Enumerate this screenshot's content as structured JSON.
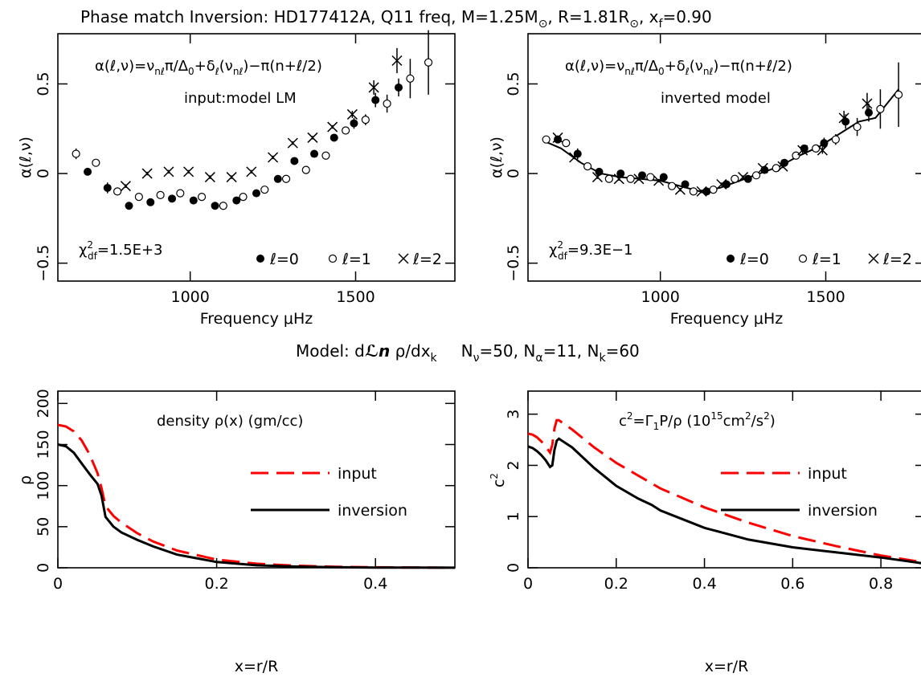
{
  "page": {
    "title": "Phase match Inversion: HD177412A, Q11 freq, M=1.25M",
    "title_sun1": "⊙",
    "title_mid": ", R=1.81R",
    "title_sun2": "⊙",
    "title_end": ", x",
    "title_sub": "f",
    "title_tail": "=0.90",
    "model_line": {
      "pre": "Model: d",
      "ln": "ℒn",
      "rho": " ρ/dx",
      "k": "k",
      "nnu": "N",
      "nnu_sub": "ν",
      "nnu_val": "=50, N",
      "na_sub": "α",
      "na_val": "=11, N",
      "nk_sub": "k",
      "nk_val": "=60"
    }
  },
  "chart_data": [
    {
      "id": "alpha-input",
      "type": "scatter",
      "formula": "α(ℓ,ν)=ν",
      "formula_sub1": "nℓ",
      "formula_mid": "π/Δ",
      "formula_sub0": "0",
      "formula_plus": "+δ",
      "formula_subl": "ℓ",
      "formula_paren": "(ν",
      "formula_sub2": "nℓ",
      "formula_end": ")−π(n+ℓ/2)",
      "subtitle": "input:model LM",
      "chi_pre": "χ",
      "chi_sup": "2",
      "chi_sub": "df",
      "chi_val": "=1.5E+3",
      "xlabel": "Frequency μHz",
      "ylabel": "α(ℓ,ν)",
      "xlim": [
        600,
        1800
      ],
      "ylim": [
        -0.6,
        0.78
      ],
      "xticks": [
        "1000",
        "1500"
      ],
      "yticks": [
        "−0.5",
        "0",
        "0.5"
      ],
      "legend": [
        {
          "marker": "filled",
          "label": "ℓ=0"
        },
        {
          "marker": "open",
          "label": "ℓ=1"
        },
        {
          "marker": "cross",
          "label": "ℓ=2"
        }
      ],
      "series": [
        {
          "name": "ℓ=0",
          "marker": "filled",
          "x": [
            690,
            750,
            815,
            880,
            945,
            1010,
            1075,
            1140,
            1200,
            1265,
            1315,
            1375,
            1435,
            1495,
            1560,
            1630
          ],
          "y": [
            0.01,
            -0.08,
            -0.18,
            -0.16,
            -0.14,
            -0.15,
            -0.18,
            -0.15,
            -0.11,
            -0.03,
            0.07,
            0.11,
            0.2,
            0.28,
            0.41,
            0.48
          ],
          "err": [
            0.02,
            0.03,
            0.02,
            0.02,
            0.02,
            0.02,
            0.02,
            0.02,
            0.02,
            0.02,
            0.02,
            0.02,
            0.02,
            0.03,
            0.04,
            0.05
          ]
        },
        {
          "name": "ℓ=1",
          "marker": "open",
          "x": [
            655,
            715,
            780,
            845,
            910,
            970,
            1035,
            1100,
            1160,
            1225,
            1290,
            1350,
            1410,
            1470,
            1530,
            1595,
            1665,
            1720
          ],
          "y": [
            0.11,
            0.06,
            -0.1,
            -0.13,
            -0.12,
            -0.11,
            -0.13,
            -0.18,
            -0.13,
            -0.09,
            -0.03,
            0.02,
            0.1,
            0.24,
            0.3,
            0.39,
            0.53,
            0.62
          ],
          "err": [
            0.03,
            0.02,
            0.02,
            0.02,
            0.02,
            0.02,
            0.02,
            0.02,
            0.02,
            0.02,
            0.02,
            0.02,
            0.02,
            0.02,
            0.03,
            0.05,
            0.11,
            0.18
          ]
        },
        {
          "name": "ℓ=2",
          "marker": "cross",
          "x": [
            805,
            870,
            935,
            995,
            1060,
            1125,
            1185,
            1250,
            1310,
            1370,
            1430,
            1490,
            1555,
            1625
          ],
          "y": [
            -0.07,
            0.0,
            0.01,
            0.01,
            -0.02,
            -0.02,
            0.01,
            0.09,
            0.17,
            0.2,
            0.26,
            0.33,
            0.48,
            0.63
          ],
          "err": [
            0.01,
            0.01,
            0.01,
            0.01,
            0.01,
            0.01,
            0.01,
            0.01,
            0.01,
            0.01,
            0.01,
            0.02,
            0.04,
            0.07
          ]
        }
      ]
    },
    {
      "id": "alpha-inverted",
      "type": "scatter",
      "formula": "α(ℓ,ν)=ν",
      "formula_sub1": "nℓ",
      "formula_mid": "π/Δ",
      "formula_sub0": "0",
      "formula_plus": "+δ",
      "formula_subl": "ℓ",
      "formula_paren": "(ν",
      "formula_sub2": "nℓ",
      "formula_end": ")−π(n+ℓ/2)",
      "subtitle": "inverted model",
      "chi_pre": "χ",
      "chi_sup": "2",
      "chi_sub": "df",
      "chi_val": "=9.3E−1",
      "xlabel": "Frequency μHz",
      "ylabel": "α(ℓ,ν)",
      "xlim": [
        600,
        1800
      ],
      "ylim": [
        -0.6,
        0.78
      ],
      "xticks": [
        "1000",
        "1500"
      ],
      "yticks": [
        "−0.5",
        "0",
        "0.5"
      ],
      "legend": [
        {
          "marker": "filled",
          "label": "ℓ=0"
        },
        {
          "marker": "open",
          "label": "ℓ=1"
        },
        {
          "marker": "cross",
          "label": "ℓ=2"
        }
      ],
      "series": [
        {
          "name": "ℓ=0",
          "marker": "filled",
          "x": [
            690,
            750,
            815,
            880,
            945,
            1010,
            1075,
            1140,
            1200,
            1265,
            1315,
            1375,
            1435,
            1495,
            1560,
            1630
          ],
          "y": [
            0.19,
            0.11,
            0.01,
            0.0,
            -0.01,
            -0.02,
            -0.06,
            -0.1,
            -0.06,
            -0.03,
            0.02,
            0.06,
            0.14,
            0.17,
            0.29,
            0.34
          ],
          "err": [
            0.02,
            0.03,
            0.02,
            0.02,
            0.02,
            0.02,
            0.02,
            0.02,
            0.02,
            0.02,
            0.02,
            0.02,
            0.02,
            0.03,
            0.04,
            0.05
          ]
        },
        {
          "name": "ℓ=1",
          "marker": "open",
          "x": [
            655,
            715,
            780,
            845,
            910,
            970,
            1035,
            1100,
            1160,
            1225,
            1290,
            1350,
            1410,
            1470,
            1530,
            1595,
            1665,
            1720
          ],
          "y": [
            0.19,
            0.17,
            0.04,
            -0.03,
            -0.03,
            -0.02,
            -0.07,
            -0.1,
            -0.09,
            -0.03,
            -0.01,
            0.03,
            0.1,
            0.14,
            0.19,
            0.26,
            0.36,
            0.44
          ],
          "err": [
            0.02,
            0.02,
            0.02,
            0.02,
            0.02,
            0.02,
            0.02,
            0.02,
            0.02,
            0.02,
            0.02,
            0.02,
            0.02,
            0.02,
            0.03,
            0.05,
            0.11,
            0.18
          ]
        },
        {
          "name": "ℓ=2",
          "marker": "cross",
          "x": [
            690,
            740,
            810,
            875,
            935,
            995,
            1060,
            1125,
            1185,
            1250,
            1310,
            1370,
            1430,
            1490,
            1555,
            1625
          ],
          "y": [
            0.2,
            0.09,
            -0.02,
            -0.03,
            -0.03,
            -0.04,
            -0.09,
            -0.1,
            -0.06,
            -0.02,
            0.03,
            0.04,
            0.13,
            0.13,
            0.31,
            0.39
          ],
          "err": [
            0.01,
            0.01,
            0.01,
            0.01,
            0.01,
            0.01,
            0.01,
            0.01,
            0.01,
            0.01,
            0.01,
            0.01,
            0.02,
            0.02,
            0.04,
            0.06
          ]
        }
      ],
      "model_line": {
        "x": [
          650,
          700,
          760,
          820,
          880,
          940,
          1000,
          1060,
          1120,
          1180,
          1240,
          1300,
          1360,
          1420,
          1480,
          1540,
          1600,
          1650,
          1720
        ],
        "y": [
          0.18,
          0.14,
          0.06,
          0.0,
          -0.02,
          -0.03,
          -0.04,
          -0.07,
          -0.1,
          -0.08,
          -0.04,
          0.0,
          0.04,
          0.1,
          0.15,
          0.22,
          0.29,
          0.31,
          0.47
        ]
      }
    },
    {
      "id": "density",
      "type": "line",
      "title": "density ρ(x) (gm/cc)",
      "xlabel": "x=r/R",
      "ylabel": "ρ",
      "xlim": [
        0,
        0.5
      ],
      "ylim": [
        0,
        215
      ],
      "xticks": [
        "0",
        "0.2",
        "0.4"
      ],
      "yticks": [
        "0",
        "50",
        "100",
        "150",
        "200"
      ],
      "series": [
        {
          "name": "input",
          "style": "dashed",
          "color": "#ff0000",
          "x": [
            0,
            0.01,
            0.02,
            0.03,
            0.04,
            0.05,
            0.055,
            0.06,
            0.07,
            0.08,
            0.1,
            0.12,
            0.15,
            0.2,
            0.25,
            0.3,
            0.35,
            0.4,
            0.5
          ],
          "y": [
            174,
            172,
            166,
            155,
            138,
            115,
            97,
            75,
            63,
            55,
            42,
            32,
            21,
            10,
            5,
            2.5,
            1.2,
            0.6,
            0.1
          ]
        },
        {
          "name": "inversion",
          "style": "solid",
          "color": "#000000",
          "x": [
            0,
            0.01,
            0.02,
            0.03,
            0.04,
            0.05,
            0.055,
            0.06,
            0.07,
            0.08,
            0.1,
            0.12,
            0.15,
            0.2,
            0.25,
            0.3,
            0.35,
            0.4,
            0.5
          ],
          "y": [
            150,
            148,
            140,
            127,
            114,
            102,
            88,
            62,
            50,
            43,
            34,
            26,
            16,
            7,
            3,
            1.5,
            0.7,
            0.3,
            0.05
          ]
        }
      ],
      "legend": [
        "input",
        "inversion"
      ]
    },
    {
      "id": "sound-speed",
      "type": "line",
      "title": "c",
      "title_sup": "2",
      "title_mid": "=Γ",
      "title_sub": "1",
      "title_tail": "P/ρ (10",
      "title_sup2": "15",
      "title_unit": "cm",
      "title_sup3": "2",
      "title_end": "/s",
      "title_sup4": "2",
      "title_close": ")",
      "xlabel": "x=r/R",
      "ylabel": "c",
      "ylabel_sup": "2",
      "xlim": [
        0,
        0.9
      ],
      "ylim": [
        0,
        3.45
      ],
      "xticks": [
        "0",
        "0.2",
        "0.4",
        "0.6",
        "0.8"
      ],
      "yticks": [
        "0",
        "1",
        "2",
        "3"
      ],
      "series": [
        {
          "name": "input",
          "style": "dashed",
          "color": "#ff0000",
          "x": [
            0,
            0.01,
            0.02,
            0.03,
            0.04,
            0.05,
            0.055,
            0.06,
            0.065,
            0.07,
            0.1,
            0.15,
            0.2,
            0.3,
            0.4,
            0.5,
            0.6,
            0.7,
            0.8,
            0.9
          ],
          "y": [
            2.62,
            2.6,
            2.55,
            2.47,
            2.37,
            2.25,
            2.4,
            2.72,
            2.88,
            2.88,
            2.7,
            2.35,
            2.05,
            1.55,
            1.18,
            0.88,
            0.62,
            0.42,
            0.24,
            0.1
          ]
        },
        {
          "name": "inversion",
          "style": "solid",
          "color": "#000000",
          "x": [
            0,
            0.01,
            0.02,
            0.03,
            0.04,
            0.05,
            0.055,
            0.06,
            0.065,
            0.07,
            0.1,
            0.15,
            0.2,
            0.25,
            0.28,
            0.3,
            0.4,
            0.5,
            0.6,
            0.7,
            0.8,
            0.9
          ],
          "y": [
            2.37,
            2.34,
            2.28,
            2.2,
            2.1,
            1.97,
            2.0,
            2.3,
            2.48,
            2.52,
            2.35,
            1.95,
            1.6,
            1.35,
            1.23,
            1.12,
            0.78,
            0.55,
            0.4,
            0.3,
            0.2,
            0.08
          ]
        }
      ],
      "legend": [
        "input",
        "inversion"
      ]
    }
  ]
}
